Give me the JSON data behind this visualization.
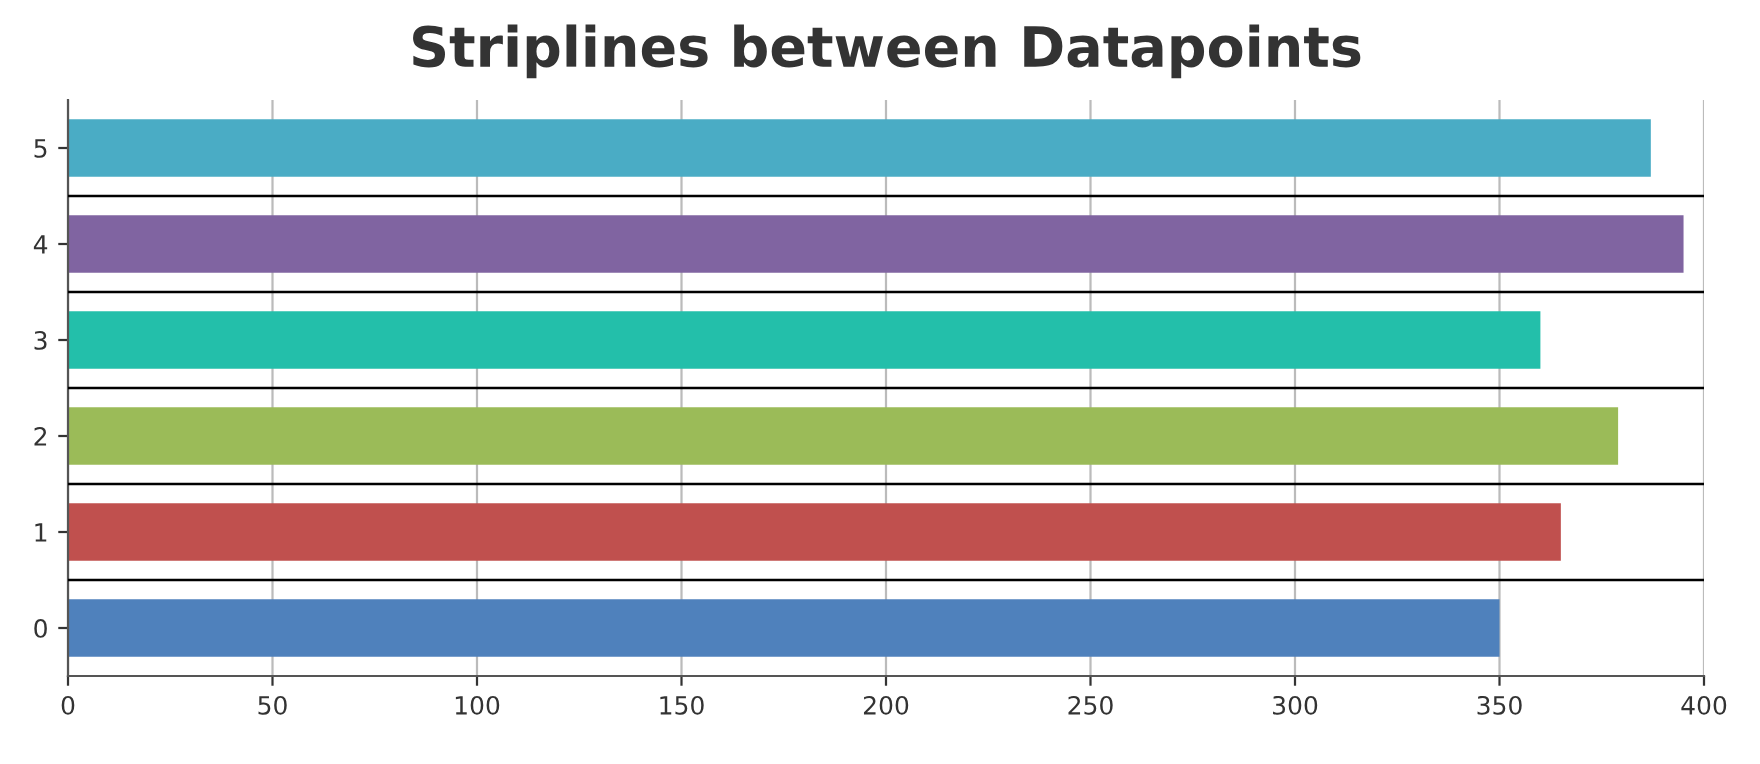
{
  "chart_data": {
    "type": "bar",
    "orientation": "horizontal",
    "title": "Striplines between Datapoints",
    "x": [
      0,
      1,
      2,
      3,
      4,
      5
    ],
    "values": [
      350,
      365,
      379,
      360,
      395,
      387
    ],
    "colors": [
      "#4f81bc",
      "#c0504e",
      "#9bbb58",
      "#23bfaa",
      "#8064a1",
      "#4aacc5"
    ],
    "xlim": [
      0,
      400
    ],
    "xticks": [
      0,
      50,
      100,
      150,
      200,
      250,
      300,
      350,
      400
    ],
    "ylim": [
      -0.5,
      5.5
    ],
    "yticks": [
      0,
      1,
      2,
      3,
      4,
      5
    ],
    "grid": "x",
    "ref_lines": [
      {
        "axis": "y",
        "value": 0.5,
        "color": "#000000"
      },
      {
        "axis": "y",
        "value": 1.5,
        "color": "#000000"
      },
      {
        "axis": "y",
        "value": 2.5,
        "color": "#000000"
      },
      {
        "axis": "y",
        "value": 3.5,
        "color": "#000000"
      },
      {
        "axis": "y",
        "value": 4.5,
        "color": "#000000"
      }
    ]
  }
}
